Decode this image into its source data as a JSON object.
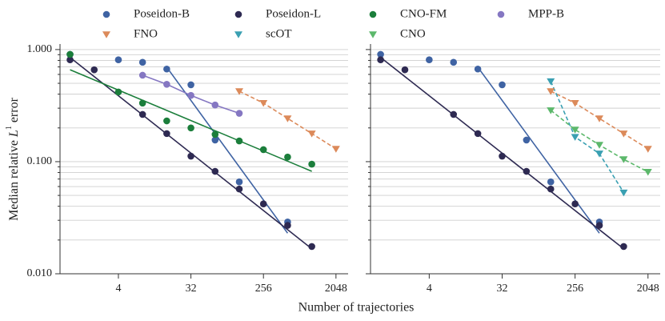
{
  "figure": {
    "xlabel": "Number of trajectories",
    "ylabel": [
      "Median relative ",
      "L",
      "1",
      " error"
    ]
  },
  "chart_data": [
    {
      "type": "scatter",
      "xscale": "log2",
      "yscale": "log",
      "xlim": [
        0.75,
        2900
      ],
      "ylim": [
        0.01,
        1.12
      ],
      "xticks": [
        4,
        32,
        256,
        2048
      ],
      "yticks": [
        {
          "value": 0.01,
          "label": "0.010"
        },
        {
          "value": 0.1,
          "label": "0.100"
        },
        {
          "value": 1,
          "label": "1.000"
        }
      ],
      "yminor_ticks": [
        0.02,
        0.03,
        0.04,
        0.05,
        0.06,
        0.07,
        0.08,
        0.09,
        0.2,
        0.3,
        0.4,
        0.5,
        0.6,
        0.7,
        0.8,
        0.9
      ],
      "grid": true,
      "show_ytick_labels": true,
      "series": [
        {
          "name": "Poseidon-B",
          "color": "#3f63a3",
          "marker": "circle",
          "line": "fit",
          "x": [
            1,
            4,
            8,
            16,
            32,
            64,
            128,
            512
          ],
          "values": [
            0.906,
            0.81,
            0.77,
            0.67,
            0.485,
            0.156,
            0.066,
            0.029
          ],
          "fit_x": [
            16,
            512
          ],
          "fit_values": [
            0.696,
            0.023
          ]
        },
        {
          "name": "Poseidon-L",
          "color": "#2e2a52",
          "marker": "circle",
          "line": "fit",
          "x": [
            1,
            2,
            8,
            16,
            32,
            64,
            128,
            256,
            512,
            1024
          ],
          "values": [
            0.81,
            0.66,
            0.264,
            0.178,
            0.112,
            0.082,
            0.057,
            0.042,
            0.027,
            0.0175
          ],
          "fit_x": [
            1,
            1024
          ],
          "fit_values": [
            0.85,
            0.0167
          ]
        },
        {
          "name": "CNO-FM",
          "color": "#1b7e3b",
          "marker": "circle",
          "line": "fit",
          "x": [
            1,
            4,
            8,
            16,
            32,
            64,
            128,
            256,
            512,
            1024
          ],
          "values": [
            0.906,
            0.418,
            0.333,
            0.231,
            0.2,
            0.175,
            0.153,
            0.128,
            0.11,
            0.095
          ],
          "fit_x": [
            1,
            1024
          ],
          "fit_values": [
            0.66,
            0.082
          ]
        },
        {
          "name": "MPP-B",
          "color": "#8577c2",
          "marker": "circle",
          "line": "solid",
          "x": [
            8,
            16,
            32,
            64,
            128
          ],
          "values": [
            0.59,
            0.49,
            0.39,
            0.32,
            0.27
          ]
        },
        {
          "name": "FNO",
          "color": "#dc8a5a",
          "marker": "triangle",
          "line": "dashed",
          "x": [
            128,
            256,
            512,
            1024,
            2048
          ],
          "values": [
            0.425,
            0.333,
            0.243,
            0.178,
            0.13
          ]
        }
      ]
    },
    {
      "type": "scatter",
      "xscale": "log2",
      "yscale": "log",
      "xlim": [
        0.75,
        2900
      ],
      "ylim": [
        0.01,
        1.12
      ],
      "xticks": [
        4,
        32,
        256,
        2048
      ],
      "yticks": [
        {
          "value": 0.01,
          "label": "0.010"
        },
        {
          "value": 0.1,
          "label": "0.100"
        },
        {
          "value": 1,
          "label": "1.000"
        }
      ],
      "yminor_ticks": [
        0.02,
        0.03,
        0.04,
        0.05,
        0.06,
        0.07,
        0.08,
        0.09,
        0.2,
        0.3,
        0.4,
        0.5,
        0.6,
        0.7,
        0.8,
        0.9
      ],
      "grid": true,
      "show_ytick_labels": false,
      "series": [
        {
          "name": "Poseidon-B",
          "color": "#3f63a3",
          "marker": "circle",
          "line": "fit",
          "x": [
            1,
            4,
            8,
            16,
            32,
            64,
            128,
            512
          ],
          "values": [
            0.906,
            0.81,
            0.77,
            0.67,
            0.485,
            0.156,
            0.066,
            0.029
          ],
          "fit_x": [
            16,
            512
          ],
          "fit_values": [
            0.696,
            0.023
          ]
        },
        {
          "name": "Poseidon-L",
          "color": "#2e2a52",
          "marker": "circle",
          "line": "fit",
          "x": [
            1,
            2,
            8,
            16,
            32,
            64,
            128,
            256,
            512,
            1024
          ],
          "values": [
            0.81,
            0.66,
            0.264,
            0.178,
            0.112,
            0.082,
            0.057,
            0.042,
            0.027,
            0.0175
          ],
          "fit_x": [
            1,
            1024
          ],
          "fit_values": [
            0.85,
            0.0167
          ]
        },
        {
          "name": "FNO",
          "color": "#dc8a5a",
          "marker": "triangle",
          "line": "dashed",
          "x": [
            128,
            256,
            512,
            1024,
            2048
          ],
          "values": [
            0.425,
            0.333,
            0.243,
            0.178,
            0.13
          ]
        },
        {
          "name": "scOT",
          "color": "#3aa0b2",
          "marker": "triangle",
          "line": "dashed",
          "x": [
            128,
            256,
            512,
            1024
          ],
          "values": [
            0.52,
            0.166,
            0.118,
            0.053
          ]
        },
        {
          "name": "CNO",
          "color": "#5cb86b",
          "marker": "triangle",
          "line": "dashed",
          "x": [
            128,
            256,
            512,
            1024,
            2048
          ],
          "values": [
            0.287,
            0.193,
            0.141,
            0.105,
            0.081
          ]
        }
      ]
    }
  ]
}
